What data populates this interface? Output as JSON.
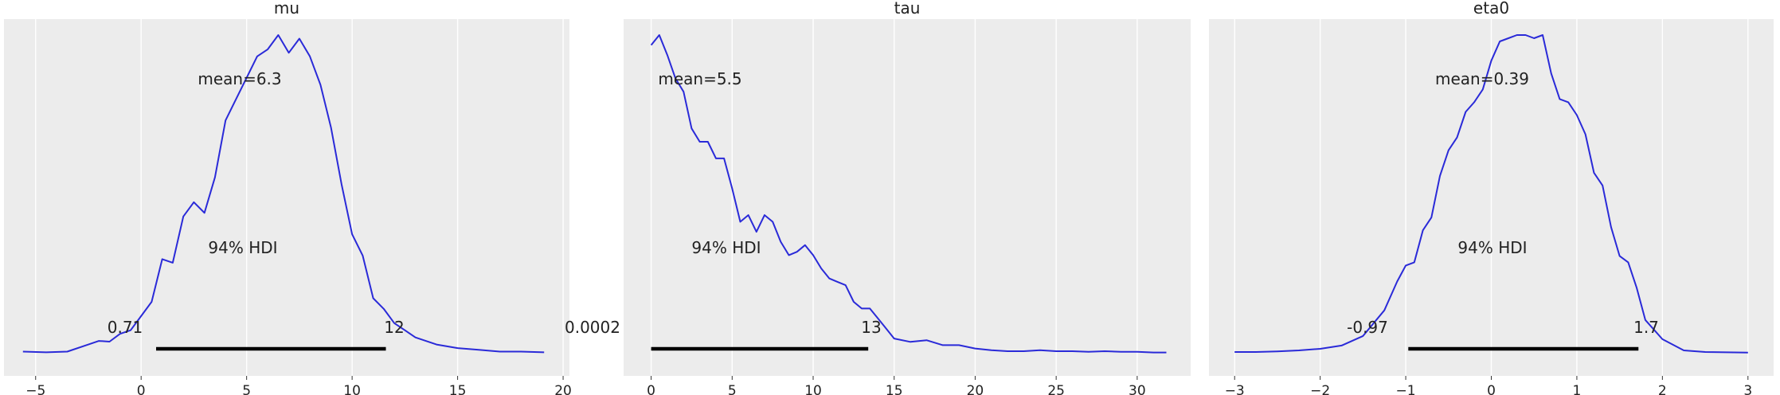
{
  "chart_data": [
    {
      "type": "line",
      "title": "mu",
      "xlim": [
        -6.5,
        20.3
      ],
      "xticks": [
        -5,
        0,
        5,
        10,
        15,
        20
      ],
      "xtick_labels": [
        "−5",
        "0",
        "5",
        "10",
        "15",
        "20"
      ],
      "grid": true,
      "mean_label": "mean=6.3",
      "hdi_label": "94% HDI",
      "hdi": [
        0.71,
        11.6
      ],
      "hdi_low_label": "0.71",
      "hdi_high_label": "12",
      "x": [
        -5.6,
        -4.5,
        -3.5,
        -2.5,
        -2,
        -1.5,
        -1,
        -0.5,
        0,
        0.5,
        1,
        1.5,
        2,
        2.5,
        3,
        3.5,
        4,
        4.5,
        5,
        5.5,
        6,
        6.5,
        7,
        7.5,
        8,
        8.5,
        9,
        9.5,
        10,
        10.5,
        11,
        11.5,
        12,
        12.5,
        13,
        14,
        15,
        16,
        17,
        18,
        19.1
      ],
      "y": [
        0.01,
        0.008,
        0.01,
        0.03,
        0.04,
        0.038,
        0.06,
        0.07,
        0.11,
        0.15,
        0.27,
        0.26,
        0.39,
        0.43,
        0.4,
        0.5,
        0.66,
        0.72,
        0.78,
        0.84,
        0.86,
        0.9,
        0.85,
        0.89,
        0.84,
        0.76,
        0.64,
        0.48,
        0.34,
        0.28,
        0.16,
        0.13,
        0.09,
        0.07,
        0.05,
        0.03,
        0.02,
        0.015,
        0.01,
        0.01,
        0.008
      ]
    },
    {
      "type": "line",
      "title": "tau",
      "xlim": [
        -1.7,
        33.3
      ],
      "xticks": [
        0,
        5,
        10,
        15,
        20,
        25,
        30
      ],
      "xtick_labels": [
        "0",
        "5",
        "10",
        "15",
        "20",
        "25",
        "30"
      ],
      "grid": true,
      "mean_label": "mean=5.5",
      "hdi_label": "94% HDI",
      "hdi": [
        0.0002,
        13.4
      ],
      "hdi_low_label": "0.0002",
      "hdi_high_label": "13",
      "x": [
        0,
        0.5,
        1,
        1.5,
        2,
        2.5,
        3,
        3.5,
        4,
        4.5,
        5,
        5.5,
        6,
        6.5,
        7,
        7.5,
        8,
        8.5,
        9,
        9.5,
        10,
        10.5,
        11,
        11.5,
        12,
        12.5,
        13,
        13.5,
        14,
        14.5,
        15,
        16,
        17,
        18,
        19,
        20,
        21,
        22,
        23,
        24,
        25,
        26,
        27,
        28,
        29,
        30,
        31,
        31.8
      ],
      "y": [
        0.93,
        0.96,
        0.9,
        0.83,
        0.79,
        0.68,
        0.64,
        0.64,
        0.59,
        0.59,
        0.5,
        0.4,
        0.42,
        0.37,
        0.42,
        0.4,
        0.34,
        0.3,
        0.31,
        0.33,
        0.3,
        0.26,
        0.23,
        0.22,
        0.21,
        0.16,
        0.14,
        0.14,
        0.11,
        0.08,
        0.05,
        0.04,
        0.045,
        0.03,
        0.03,
        0.02,
        0.015,
        0.012,
        0.012,
        0.015,
        0.012,
        0.012,
        0.01,
        0.012,
        0.01,
        0.01,
        0.008,
        0.008
      ]
    },
    {
      "type": "line",
      "title": "eta0",
      "xlim": [
        -3.3,
        3.3
      ],
      "xticks": [
        -3,
        -2,
        -1,
        0,
        1,
        2,
        3
      ],
      "xtick_labels": [
        "−3",
        "−2",
        "−1",
        "0",
        "1",
        "2",
        "3"
      ],
      "grid": true,
      "mean_label": "mean=0.39",
      "hdi_label": "94% HDI",
      "hdi": [
        -0.97,
        1.72
      ],
      "hdi_low_label": "-0.97",
      "hdi_high_label": "1.7",
      "x": [
        -3,
        -2.75,
        -2.5,
        -2.25,
        -2,
        -1.75,
        -1.5,
        -1.25,
        -1.1,
        -1,
        -0.9,
        -0.8,
        -0.7,
        -0.6,
        -0.5,
        -0.4,
        -0.3,
        -0.2,
        -0.1,
        0,
        0.1,
        0.2,
        0.3,
        0.4,
        0.5,
        0.6,
        0.7,
        0.8,
        0.9,
        1.0,
        1.1,
        1.2,
        1.3,
        1.4,
        1.5,
        1.6,
        1.7,
        1.8,
        1.9,
        2.0,
        2.25,
        2.5,
        3.0
      ],
      "y": [
        0.01,
        0.01,
        0.012,
        0.015,
        0.02,
        0.03,
        0.06,
        0.14,
        0.23,
        0.28,
        0.29,
        0.39,
        0.43,
        0.56,
        0.64,
        0.68,
        0.76,
        0.79,
        0.83,
        0.92,
        0.98,
        0.99,
        1.0,
        1.0,
        0.99,
        1.0,
        0.88,
        0.8,
        0.79,
        0.75,
        0.69,
        0.57,
        0.53,
        0.4,
        0.31,
        0.29,
        0.21,
        0.11,
        0.08,
        0.05,
        0.015,
        0.01,
        0.008
      ]
    }
  ]
}
